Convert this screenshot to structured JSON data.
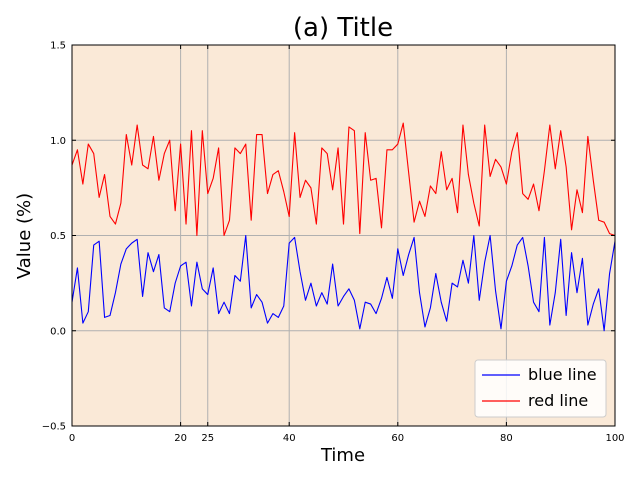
{
  "chart_data": {
    "type": "line",
    "title": "(a) Title",
    "xlabel": "Time",
    "ylabel": "Value (%)",
    "xlim": [
      0,
      100
    ],
    "ylim": [
      -0.5,
      1.5
    ],
    "xticks": [
      0,
      20,
      25,
      40,
      60,
      80,
      100
    ],
    "xtick_labels": [
      "0",
      "20",
      "25",
      "40",
      "60",
      "80",
      "100"
    ],
    "yticks": [
      -0.5,
      0.0,
      0.5,
      1.0,
      1.5
    ],
    "ytick_labels": [
      "−0.5",
      "0.0",
      "0.5",
      "1.0",
      "1.5"
    ],
    "grid": true,
    "background": "#fae9d7",
    "legend_position": "lower-right",
    "series": [
      {
        "name": "blue line",
        "color": "#0000ff",
        "x": [
          0,
          1,
          2,
          3,
          4,
          5,
          6,
          7,
          8,
          9,
          10,
          11,
          12,
          13,
          14,
          15,
          16,
          17,
          18,
          19,
          20,
          21,
          22,
          23,
          24,
          25,
          26,
          27,
          28,
          29,
          30,
          31,
          32,
          33,
          34,
          35,
          36,
          37,
          38,
          39,
          40,
          41,
          42,
          43,
          44,
          45,
          46,
          47,
          48,
          49,
          50,
          51,
          52,
          53,
          54,
          55,
          56,
          57,
          58,
          59,
          60,
          61,
          62,
          63,
          64,
          65,
          66,
          67,
          68,
          69,
          70,
          71,
          72,
          73,
          74,
          75,
          76,
          77,
          78,
          79,
          80,
          81,
          82,
          83,
          84,
          85,
          86,
          87,
          88,
          89,
          90,
          91,
          92,
          93,
          94,
          95,
          96,
          97,
          98,
          99,
          100
        ],
        "y": [
          0.15,
          0.33,
          0.04,
          0.1,
          0.45,
          0.47,
          0.07,
          0.08,
          0.2,
          0.35,
          0.43,
          0.46,
          0.48,
          0.18,
          0.41,
          0.31,
          0.4,
          0.12,
          0.1,
          0.25,
          0.34,
          0.36,
          0.13,
          0.36,
          0.22,
          0.19,
          0.33,
          0.09,
          0.15,
          0.09,
          0.29,
          0.26,
          0.5,
          0.12,
          0.19,
          0.15,
          0.04,
          0.09,
          0.07,
          0.13,
          0.46,
          0.49,
          0.31,
          0.16,
          0.25,
          0.13,
          0.2,
          0.14,
          0.35,
          0.13,
          0.18,
          0.22,
          0.16,
          0.01,
          0.15,
          0.14,
          0.09,
          0.17,
          0.28,
          0.17,
          0.43,
          0.29,
          0.4,
          0.49,
          0.2,
          0.02,
          0.12,
          0.3,
          0.15,
          0.05,
          0.25,
          0.23,
          0.37,
          0.25,
          0.5,
          0.16,
          0.36,
          0.5,
          0.21,
          0.01,
          0.26,
          0.34,
          0.45,
          0.49,
          0.34,
          0.15,
          0.1,
          0.49,
          0.03,
          0.2,
          0.48,
          0.08,
          0.41,
          0.2,
          0.38,
          0.03,
          0.14,
          0.22,
          0.0,
          0.3,
          0.47
        ]
      },
      {
        "name": "red line",
        "color": "#ff0000",
        "x": [
          0,
          1,
          2,
          3,
          4,
          5,
          6,
          7,
          8,
          9,
          10,
          11,
          12,
          13,
          14,
          15,
          16,
          17,
          18,
          19,
          20,
          21,
          22,
          23,
          24,
          25,
          26,
          27,
          28,
          29,
          30,
          31,
          32,
          33,
          34,
          35,
          36,
          37,
          38,
          39,
          40,
          41,
          42,
          43,
          44,
          45,
          46,
          47,
          48,
          49,
          50,
          51,
          52,
          53,
          54,
          55,
          56,
          57,
          58,
          59,
          60,
          61,
          62,
          63,
          64,
          65,
          66,
          67,
          68,
          69,
          70,
          71,
          72,
          73,
          74,
          75,
          76,
          77,
          78,
          79,
          80,
          81,
          82,
          83,
          84,
          85,
          86,
          87,
          88,
          89,
          90,
          91,
          92,
          93,
          94,
          95,
          96,
          97,
          98,
          99,
          100
        ],
        "y": [
          0.87,
          0.95,
          0.77,
          0.98,
          0.93,
          0.7,
          0.82,
          0.6,
          0.56,
          0.67,
          1.03,
          0.87,
          1.08,
          0.87,
          0.85,
          1.02,
          0.79,
          0.93,
          1.0,
          0.63,
          0.98,
          0.56,
          1.05,
          0.5,
          1.05,
          0.72,
          0.8,
          0.96,
          0.5,
          0.58,
          0.96,
          0.93,
          0.98,
          0.58,
          1.03,
          1.03,
          0.72,
          0.82,
          0.84,
          0.73,
          0.6,
          1.04,
          0.7,
          0.79,
          0.75,
          0.56,
          0.96,
          0.93,
          0.74,
          0.96,
          0.56,
          1.07,
          1.05,
          0.51,
          1.04,
          0.79,
          0.8,
          0.54,
          0.95,
          0.95,
          0.98,
          1.09,
          0.83,
          0.57,
          0.68,
          0.6,
          0.76,
          0.72,
          0.94,
          0.74,
          0.8,
          0.62,
          1.08,
          0.82,
          0.67,
          0.55,
          1.08,
          0.81,
          0.9,
          0.86,
          0.77,
          0.94,
          1.04,
          0.72,
          0.69,
          0.77,
          0.63,
          0.84,
          1.08,
          0.85,
          1.05,
          0.86,
          0.53,
          0.74,
          0.62,
          1.02,
          0.79,
          0.58,
          0.57,
          0.51,
          0.5
        ]
      }
    ]
  }
}
